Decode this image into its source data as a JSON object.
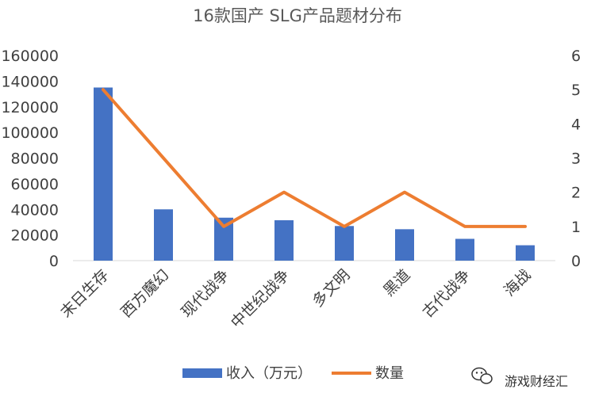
{
  "chart_data": {
    "type": "bar",
    "title": "16款国产 SLG产品题材分布",
    "categories": [
      "末日生存",
      "西方魔幻",
      "现代战争",
      "中世纪战争",
      "多文明",
      "黑道",
      "古代战争",
      "海战"
    ],
    "series": [
      {
        "name": "收入（万元）",
        "type": "bar",
        "axis": "left",
        "values": [
          135000,
          40000,
          33500,
          31500,
          27000,
          24500,
          17000,
          12000
        ]
      },
      {
        "name": "数量",
        "type": "line",
        "axis": "right",
        "values": [
          5,
          3,
          1,
          2,
          1,
          2,
          1,
          1
        ]
      }
    ],
    "y_left": {
      "min": 0,
      "max": 160000,
      "ticks": [
        "0",
        "20000",
        "40000",
        "60000",
        "80000",
        "100000",
        "120000",
        "140000",
        "160000"
      ]
    },
    "y_right": {
      "min": 0,
      "max": 6,
      "ticks": [
        "0",
        "1",
        "2",
        "3",
        "4",
        "5",
        "6"
      ]
    },
    "grid": false,
    "legend_position": "bottom",
    "colors": {
      "bar": "#4472C4",
      "line": "#ED7D31"
    }
  },
  "watermark": {
    "text": "游戏财经汇"
  }
}
